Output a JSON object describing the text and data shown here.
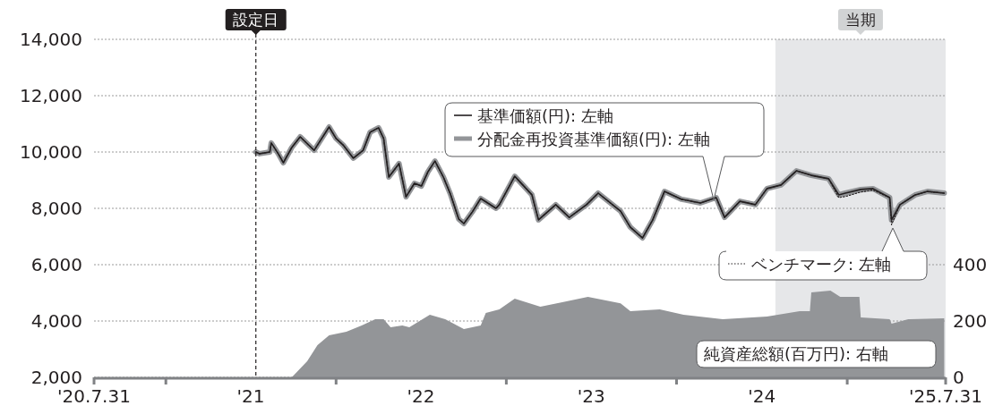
{
  "chart_data": {
    "type": "line",
    "xlim": [
      "2020-07-31",
      "2025-07-31"
    ],
    "xticks": [
      {
        "value": "2020-07-31",
        "label": "'20.7.31"
      },
      {
        "value": "2021-01-01",
        "label": null
      },
      {
        "value": "2021-07-02",
        "label": "'21"
      },
      {
        "value": "2022-01-01",
        "label": null
      },
      {
        "value": "2022-07-02",
        "label": "'22"
      },
      {
        "value": "2023-01-01",
        "label": null
      },
      {
        "value": "2023-07-02",
        "label": "'23"
      },
      {
        "value": "2024-01-01",
        "label": null
      },
      {
        "value": "2024-07-02",
        "label": "'24"
      },
      {
        "value": "2025-01-01",
        "label": null
      },
      {
        "value": "2025-07-31",
        "label": "'25.7.31"
      }
    ],
    "ylim": [
      2000,
      14000
    ],
    "yticks": [
      {
        "value": 2000,
        "label": "2,000"
      },
      {
        "value": 4000,
        "label": "4,000"
      },
      {
        "value": 6000,
        "label": "6,000"
      },
      {
        "value": 8000,
        "label": "8,000"
      },
      {
        "value": 10000,
        "label": "10,000"
      },
      {
        "value": 12000,
        "label": "12,000"
      },
      {
        "value": 14000,
        "label": "14,000"
      }
    ],
    "y2lim": [
      0,
      1200
    ],
    "y2ticks": [
      0,
      200,
      400
    ],
    "grid": "y",
    "marker": "none",
    "legend": "right",
    "ref_lines": [
      {
        "axis": "x",
        "value": "2021-07-13",
        "label": "設定日",
        "color": "#231f20",
        "line_style": "dashed"
      }
    ],
    "bands": [
      {
        "axis": "x",
        "from": "2024-07-31",
        "to": "2025-07-31",
        "label": "当期",
        "color": "#e6e7e9"
      }
    ],
    "series": [
      {
        "name": "分配金再投資基準価額(円): 左軸",
        "type": "line",
        "color": "#939598",
        "line_style": "solid",
        "x": [
          "2021-07-13",
          "2021-07-21",
          "2021-08-12",
          "2021-08-15",
          "2021-08-30",
          "2021-09-10",
          "2021-09-28",
          "2021-10-16",
          "2021-11-15",
          "2021-12-17",
          "2022-01-01",
          "2022-01-16",
          "2022-02-07",
          "2022-02-28",
          "2022-03-15",
          "2022-04-02",
          "2022-04-13",
          "2022-04-24",
          "2022-05-16",
          "2022-05-31",
          "2022-06-18",
          "2022-07-03",
          "2022-07-17",
          "2022-08-01",
          "2022-08-19",
          "2022-09-03",
          "2022-09-21",
          "2022-10-02",
          "2022-10-20",
          "2022-11-07",
          "2022-12-10",
          "2022-12-17",
          "2023-01-19",
          "2023-02-25",
          "2023-03-11",
          "2023-04-17",
          "2023-05-16",
          "2023-06-22",
          "2023-07-17",
          "2023-09-03",
          "2023-09-24",
          "2023-10-20",
          "2023-11-11",
          "2023-12-06",
          "2024-01-12",
          "2024-02-21",
          "2024-03-26",
          "2024-04-13",
          "2024-05-16",
          "2024-06-18",
          "2024-07-13",
          "2024-08-12",
          "2024-09-14",
          "2024-10-16",
          "2024-11-22",
          "2024-12-14",
          "2024-12-28",
          "2025-01-30",
          "2025-02-25",
          "2025-04-02",
          "2025-04-06",
          "2025-04-24",
          "2025-05-27",
          "2025-06-22",
          "2025-07-28"
        ],
        "values": [
          10000,
          9940,
          10000,
          10320,
          9940,
          9620,
          10160,
          10540,
          10060,
          10890,
          10480,
          10250,
          9780,
          10060,
          10700,
          10860,
          10480,
          9110,
          9590,
          8410,
          8890,
          8790,
          9300,
          9680,
          9110,
          8510,
          7620,
          7460,
          7870,
          8350,
          8000,
          8130,
          9140,
          8480,
          7590,
          8130,
          7680,
          8130,
          8540,
          7900,
          7330,
          6950,
          7590,
          8600,
          8320,
          8190,
          8380,
          7680,
          8250,
          8130,
          8700,
          8830,
          9330,
          9170,
          9050,
          8480,
          8540,
          8670,
          8700,
          8380,
          7590,
          8130,
          8480,
          8600,
          8540
        ]
      },
      {
        "name": "基準価額(円): 左軸",
        "type": "line",
        "color": "#231f20",
        "line_style": "solid",
        "x": [
          "2021-07-13",
          "2021-07-21",
          "2021-08-12",
          "2021-08-15",
          "2021-08-30",
          "2021-09-10",
          "2021-09-28",
          "2021-10-16",
          "2021-11-15",
          "2021-12-17",
          "2022-01-01",
          "2022-01-16",
          "2022-02-07",
          "2022-02-28",
          "2022-03-15",
          "2022-04-02",
          "2022-04-13",
          "2022-04-24",
          "2022-05-16",
          "2022-05-31",
          "2022-06-18",
          "2022-07-03",
          "2022-07-17",
          "2022-08-01",
          "2022-08-19",
          "2022-09-03",
          "2022-09-21",
          "2022-10-02",
          "2022-10-20",
          "2022-11-07",
          "2022-12-10",
          "2022-12-17",
          "2023-01-19",
          "2023-02-25",
          "2023-03-11",
          "2023-04-17",
          "2023-05-16",
          "2023-06-22",
          "2023-07-17",
          "2023-09-03",
          "2023-09-24",
          "2023-10-20",
          "2023-11-11",
          "2023-12-06",
          "2024-01-12",
          "2024-02-21",
          "2024-03-26",
          "2024-04-13",
          "2024-05-16",
          "2024-06-18",
          "2024-07-13",
          "2024-08-12",
          "2024-09-14",
          "2024-10-16",
          "2024-11-22",
          "2024-12-14",
          "2024-12-28",
          "2025-01-30",
          "2025-02-25",
          "2025-04-02",
          "2025-04-06",
          "2025-04-24",
          "2025-05-27",
          "2025-06-22",
          "2025-07-28"
        ],
        "values": [
          10000,
          9940,
          10000,
          10320,
          9940,
          9620,
          10160,
          10540,
          10060,
          10890,
          10480,
          10250,
          9780,
          10060,
          10700,
          10860,
          10480,
          9110,
          9590,
          8410,
          8890,
          8790,
          9300,
          9680,
          9110,
          8510,
          7620,
          7460,
          7870,
          8350,
          8000,
          8130,
          9140,
          8480,
          7590,
          8130,
          7680,
          8130,
          8540,
          7900,
          7330,
          6950,
          7590,
          8600,
          8320,
          8190,
          8380,
          7680,
          8250,
          8130,
          8700,
          8830,
          9330,
          9170,
          9050,
          8480,
          8540,
          8670,
          8700,
          8380,
          7590,
          8130,
          8480,
          8600,
          8540
        ]
      },
      {
        "name": "ベンチマーク: 左軸",
        "type": "line",
        "color": "#231f20",
        "line_style": "dotted",
        "x": [
          "2021-07-13",
          "2021-07-21",
          "2021-08-12",
          "2021-08-15",
          "2021-08-30",
          "2021-09-10",
          "2021-09-28",
          "2021-10-16",
          "2021-11-15",
          "2021-12-17",
          "2022-01-01",
          "2022-01-16",
          "2022-02-07",
          "2022-02-28",
          "2022-03-15",
          "2022-04-02",
          "2022-04-13",
          "2022-04-24",
          "2022-05-16",
          "2022-05-31",
          "2022-06-18",
          "2022-07-03",
          "2022-07-17",
          "2022-08-01",
          "2022-08-19",
          "2022-09-03",
          "2022-09-21",
          "2022-10-02",
          "2022-10-20",
          "2022-11-07",
          "2022-12-10",
          "2022-12-17",
          "2023-01-19",
          "2023-02-25",
          "2023-03-11",
          "2023-04-17",
          "2023-05-16",
          "2023-06-22",
          "2023-07-17",
          "2023-09-03",
          "2023-09-24",
          "2023-10-20",
          "2023-11-11",
          "2023-12-06",
          "2024-01-12",
          "2024-02-21",
          "2024-03-26",
          "2024-04-13",
          "2024-05-16",
          "2024-06-18",
          "2024-07-13",
          "2024-08-12",
          "2024-09-14",
          "2024-10-16",
          "2024-11-22",
          "2024-12-14",
          "2024-12-28",
          "2025-01-30",
          "2025-02-25",
          "2025-04-02",
          "2025-04-06",
          "2025-04-24",
          "2025-05-27",
          "2025-06-22",
          "2025-07-28"
        ],
        "values": [
          10000,
          9940,
          10000,
          10320,
          9940,
          9620,
          10160,
          10540,
          10060,
          10890,
          10480,
          10250,
          9780,
          10060,
          10700,
          10860,
          10480,
          9110,
          9590,
          8410,
          8890,
          8790,
          9300,
          9680,
          9110,
          8510,
          7620,
          7460,
          7870,
          8350,
          8000,
          8130,
          9140,
          8480,
          7590,
          8130,
          7680,
          8130,
          8540,
          7900,
          7330,
          6950,
          7590,
          8600,
          8320,
          8190,
          8380,
          7680,
          8250,
          8130,
          8700,
          8830,
          9330,
          9170,
          9050,
          8380,
          8420,
          8580,
          8650,
          8380,
          7420,
          8130,
          8480,
          8600,
          8540
        ]
      },
      {
        "name": "純資産総額(百万円): 右軸",
        "type": "area",
        "axis": "y2",
        "color": "#939598",
        "x": [
          "2021-07-13",
          "2021-09-28",
          "2021-10-31",
          "2021-11-22",
          "2021-12-17",
          "2022-01-23",
          "2022-02-25",
          "2022-03-26",
          "2022-04-13",
          "2022-04-28",
          "2022-05-23",
          "2022-06-07",
          "2022-07-21",
          "2022-08-23",
          "2022-10-02",
          "2022-11-07",
          "2022-11-18",
          "2022-12-17",
          "2023-01-19",
          "2023-03-15",
          "2023-05-01",
          "2023-06-25",
          "2023-09-03",
          "2023-09-24",
          "2023-11-26",
          "2024-01-16",
          "2024-04-09",
          "2024-07-13",
          "2024-09-21",
          "2024-10-13",
          "2024-10-16",
          "2024-11-26",
          "2024-12-17",
          "2025-01-27",
          "2025-01-30",
          "2025-04-02",
          "2025-04-06",
          "2025-05-12",
          "2025-07-28"
        ],
        "values": [
          0,
          0,
          57,
          114,
          149,
          162,
          184,
          206,
          206,
          178,
          184,
          178,
          222,
          206,
          171,
          184,
          229,
          241,
          279,
          251,
          267,
          286,
          263,
          235,
          241,
          222,
          206,
          216,
          235,
          235,
          302,
          308,
          286,
          286,
          213,
          206,
          190,
          206,
          210
        ]
      }
    ]
  }
}
